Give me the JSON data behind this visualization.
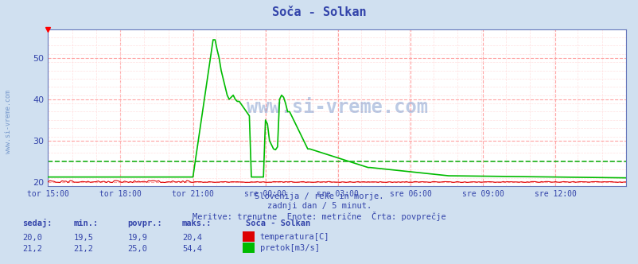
{
  "title": "Soča - Solkan",
  "bg_color": "#d0e0f0",
  "plot_bg_color": "#ffffff",
  "grid_color_major": "#ff9999",
  "grid_color_minor": "#ffdddd",
  "text_color": "#3344aa",
  "ylim": [
    19,
    57
  ],
  "yticks": [
    20,
    30,
    40,
    50
  ],
  "xlim": [
    0,
    287
  ],
  "n_points": 288,
  "temp_color": "#dd0000",
  "flow_color": "#00bb00",
  "avg_flow_color": "#00aa00",
  "avg_flow_value": 25.0,
  "watermark": "www.si-vreme.com",
  "watermark_color": "#2255aa",
  "subtitle1": "Slovenija / reke in morje.",
  "subtitle2": "zadnji dan / 5 minut.",
  "subtitle3": "Meritve: trenutne  Enote: metrične  Črta: povprečje",
  "xtick_positions": [
    0,
    36,
    72,
    108,
    144,
    180,
    216,
    252,
    287
  ],
  "xtick_labels": [
    "tor 15:00",
    "tor 18:00",
    "tor 21:00",
    "sre 00:00",
    "sre 03:00",
    "sre 06:00",
    "sre 09:00",
    "sre 12:00",
    ""
  ],
  "footer_headers": [
    "sedaj:",
    "min.:",
    "povpr.:",
    "maks.:"
  ],
  "footer_row1": [
    "20,0",
    "19,5",
    "19,9",
    "20,4"
  ],
  "footer_row2": [
    "21,2",
    "21,2",
    "25,0",
    "54,4"
  ],
  "legend_title": "Soča - Solkan",
  "legend_item1": "temperatura[C]",
  "legend_item2": "pretok[m3/s]",
  "left_label": "www.si-vreme.com"
}
